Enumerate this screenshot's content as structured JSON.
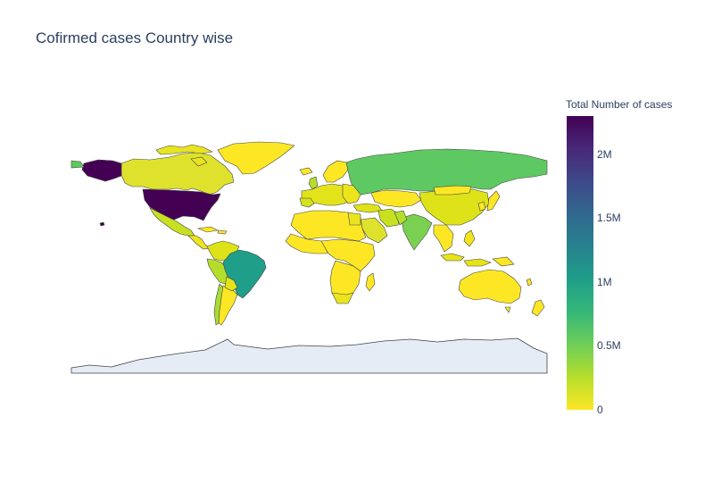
{
  "title": "Cofirmed cases Country wise",
  "colorbar": {
    "title": "Total Number of cases",
    "min": 0,
    "max": 2300000,
    "colorscale": "viridis-reversed",
    "colors": [
      "#fde725",
      "#b5de2b",
      "#6ece58",
      "#35b779",
      "#1f9e89",
      "#26828e",
      "#31688e",
      "#3e4989",
      "#482878",
      "#440154"
    ],
    "ticks": [
      {
        "value": 0,
        "label": "0"
      },
      {
        "value": 500000,
        "label": "0.5M"
      },
      {
        "value": 1000000,
        "label": "1M"
      },
      {
        "value": 1500000,
        "label": "1.5M"
      },
      {
        "value": 2000000,
        "label": "2M"
      }
    ]
  },
  "map": {
    "projection": "equirectangular",
    "land_color": "#e5ecf6",
    "border_color": "#444444",
    "lonrange": [
      -180,
      180
    ],
    "latrange": [
      -90,
      90
    ]
  }
}
